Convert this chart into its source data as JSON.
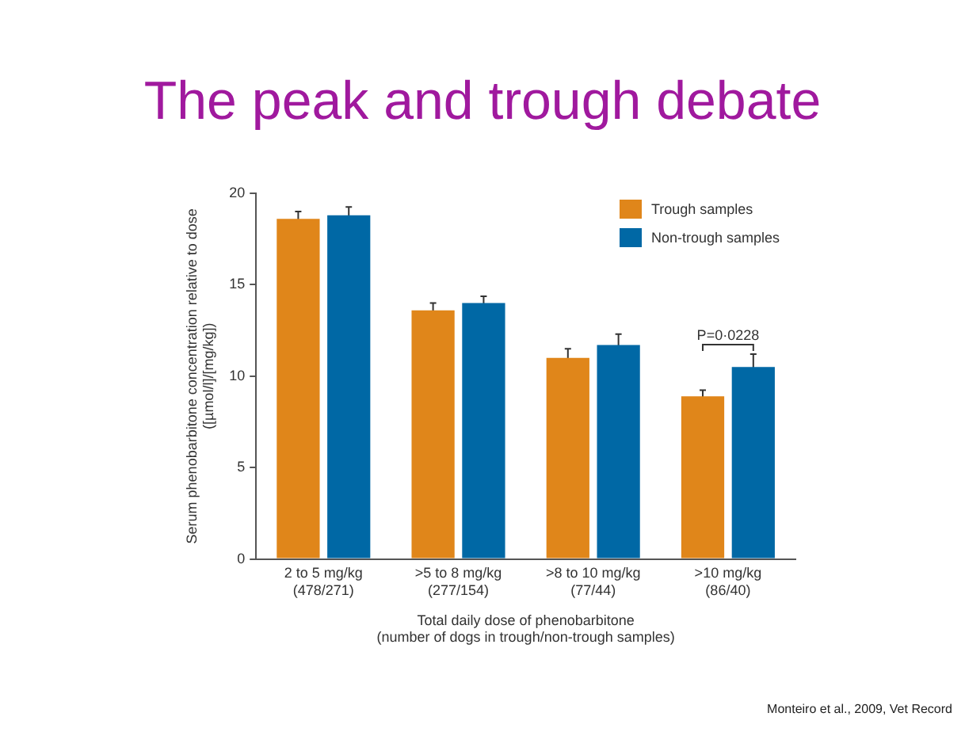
{
  "chart_data": {
    "type": "bar",
    "title": "The peak and trough debate",
    "categories": [
      "2 to 5 mg/kg\n(478/271)",
      ">5 to 8 mg/kg\n(277/154)",
      ">8 to 10 mg/kg\n(77/44)",
      ">10 mg/kg\n(86/40)"
    ],
    "series": [
      {
        "name": "Trough samples",
        "color": "#e0861a",
        "values": [
          18.6,
          13.6,
          11.0,
          8.9
        ],
        "errors": [
          0.4,
          0.4,
          0.5,
          0.33
        ]
      },
      {
        "name": "Non-trough samples",
        "color": "#0068a5",
        "values": [
          18.8,
          14.0,
          11.7,
          10.5
        ],
        "errors": [
          0.45,
          0.37,
          0.6,
          0.7
        ]
      }
    ],
    "xlabel": "Total daily dose of phenobarbitone\n(number of dogs in trough/non-trough samples)",
    "ylabel": "Serum phenobarbitone concentration relative to dose\n([µmol/l]/[mg/kg])",
    "ylim": [
      0,
      20
    ],
    "yticks": [
      0,
      5,
      10,
      15,
      20
    ],
    "grid": false,
    "legend": "top right",
    "annotations": [
      "P=0·0228",
      "Monteiro et al., 2009, Vet Record"
    ]
  }
}
